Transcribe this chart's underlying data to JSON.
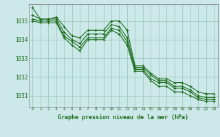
{
  "title": "Graphe pression niveau de la mer (hPa)",
  "bg_color": "#cce8e8",
  "grid_color": "#99ccbb",
  "line_color": "#1a6b1a",
  "ylim": [
    1030.4,
    1035.9
  ],
  "yticks": [
    1031,
    1032,
    1033,
    1034,
    1035
  ],
  "x_ticks": [
    0,
    1,
    2,
    3,
    4,
    5,
    6,
    7,
    8,
    9,
    10,
    11,
    12,
    13,
    14,
    15,
    16,
    17,
    18,
    19,
    20,
    21,
    22,
    23
  ],
  "series": [
    [
      1035.7,
      1035.1,
      1035.1,
      1035.2,
      1034.7,
      1034.2,
      1034.1,
      1034.5,
      1034.5,
      1034.5,
      1035.0,
      1035.0,
      1034.5,
      1032.6,
      1032.6,
      1032.2,
      1031.9,
      1031.9,
      1031.7,
      1031.7,
      1031.5,
      1031.2,
      1031.1,
      1031.1
    ],
    [
      1035.3,
      1035.1,
      1035.1,
      1035.1,
      1034.4,
      1034.0,
      1033.8,
      1034.3,
      1034.3,
      1034.3,
      1034.8,
      1034.7,
      1034.1,
      1032.5,
      1032.5,
      1032.1,
      1031.8,
      1031.8,
      1031.5,
      1031.5,
      1031.3,
      1031.0,
      1030.9,
      1030.9
    ],
    [
      1035.1,
      1035.0,
      1035.0,
      1035.0,
      1034.2,
      1033.9,
      1033.6,
      1034.1,
      1034.1,
      1034.1,
      1034.6,
      1034.5,
      1033.9,
      1032.4,
      1032.4,
      1031.9,
      1031.7,
      1031.7,
      1031.4,
      1031.4,
      1031.2,
      1030.9,
      1030.8,
      1030.8
    ],
    [
      1035.0,
      1034.9,
      1034.9,
      1034.9,
      1034.1,
      1033.7,
      1033.4,
      1034.0,
      1034.0,
      1034.0,
      1034.5,
      1034.3,
      1033.7,
      1032.3,
      1032.3,
      1031.8,
      1031.5,
      1031.5,
      1031.2,
      1031.2,
      1031.0,
      1030.8,
      1030.7,
      1030.7
    ]
  ]
}
